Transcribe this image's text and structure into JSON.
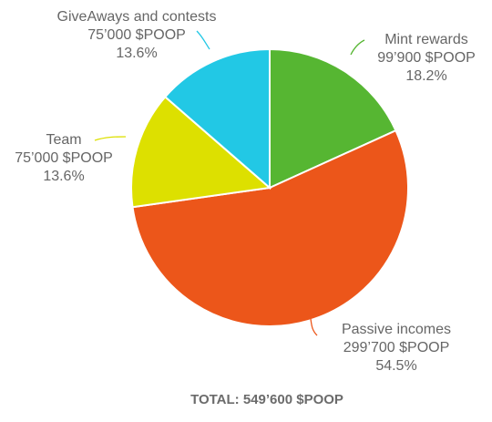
{
  "chart_data": {
    "type": "pie",
    "slices": [
      {
        "label": "Mint rewards",
        "amount": "99’900 $POOP",
        "percent_text": "18.2%",
        "value": 18.2,
        "color": "#56b632"
      },
      {
        "label": "Passive incomes",
        "amount": "299’700 $POOP",
        "percent_text": "54.5%",
        "value": 54.5,
        "color": "#ec561a"
      },
      {
        "label": "Team",
        "amount": "75’000 $POOP",
        "percent_text": "13.6%",
        "value": 13.6,
        "color": "#dde000"
      },
      {
        "label": "GiveAways and contests",
        "amount": "75’000 $POOP",
        "percent_text": "13.6%",
        "value": 13.6,
        "color": "#22c8e5"
      }
    ],
    "total_label": "TOTAL: 549’600 $POOP",
    "legend": "none"
  }
}
